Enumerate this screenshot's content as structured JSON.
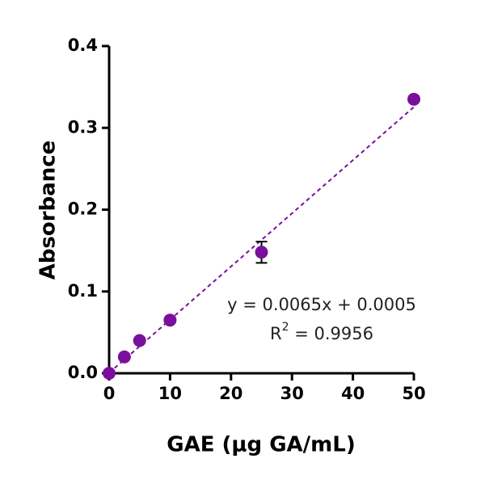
{
  "chart_data": {
    "type": "scatter",
    "xlabel": "GAE (μg GA/mL)",
    "ylabel": "Absorbance",
    "series": [
      {
        "color": "#7a0f9e",
        "x": [
          0,
          2.5,
          5,
          10,
          25,
          50
        ],
        "values": [
          0,
          0.02,
          0.04,
          0.065,
          0.148,
          0.335
        ],
        "errors": [
          null,
          null,
          null,
          null,
          0.013,
          null
        ]
      }
    ],
    "fit_line": {
      "x": [
        0,
        50
      ],
      "y": [
        0.0005,
        0.3255
      ],
      "color": "#7a0f9e"
    },
    "annotations": {
      "equation": "y = 0.0065x + 0.0005",
      "r2_base": "R",
      "r2_sup": "2",
      "r2_rest": " = 0.9956"
    },
    "xlim": [
      0,
      50
    ],
    "ylim": [
      0,
      0.4
    ],
    "xticks": [
      0,
      10,
      20,
      30,
      40,
      50
    ],
    "yticks": [
      {
        "value": 0,
        "label": "0.0"
      },
      0.1,
      0.2,
      0.3,
      0.4
    ]
  }
}
